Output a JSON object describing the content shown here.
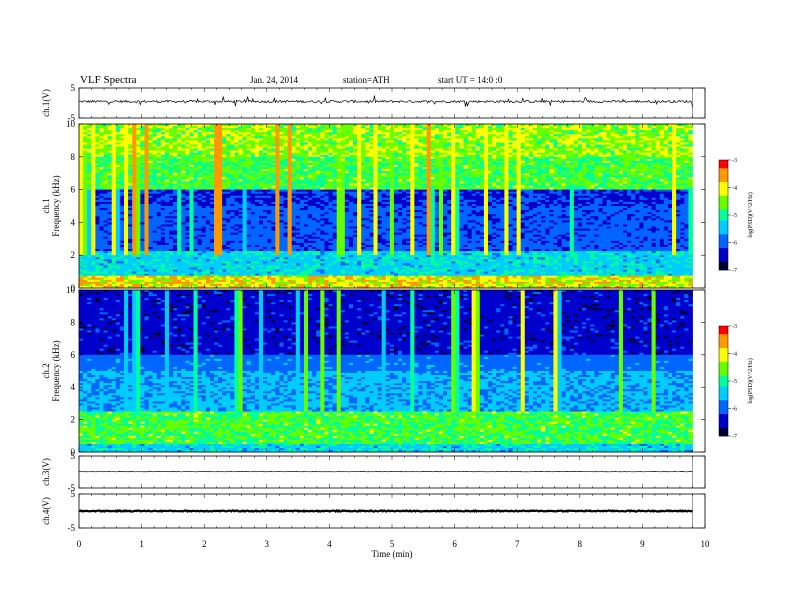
{
  "header": {
    "title": "VLF Spectra",
    "date": "Jan. 24, 2014",
    "station": "station=ATH",
    "start": "start UT = 14:0 :0"
  },
  "chart_data": [
    {
      "type": "line",
      "name": "ch1-waveform",
      "ylabel": "ch.1(V)",
      "ylim": [
        -5,
        5
      ],
      "yticks": [
        "5",
        "-5"
      ],
      "xlim": [
        0,
        10
      ],
      "data_xmax": 9.8,
      "baseline": 0.5,
      "noise": 0.4,
      "spikes": 0.9
    },
    {
      "type": "heatmap",
      "name": "ch1-spectrogram",
      "ylabel": "ch.1\nFrequency (kHz)",
      "ylim": [
        0,
        10
      ],
      "yticks": [
        "0",
        "2",
        "4",
        "6",
        "8",
        "10"
      ],
      "xlim": [
        0,
        10
      ],
      "data_xmax": 9.8,
      "colorbar": {
        "label": "log(PSD)(V^2/Hz)",
        "range": [
          -7,
          -3
        ],
        "ticks": [
          "-3",
          "-4",
          "-5",
          "-6",
          "-7"
        ]
      },
      "profile": "ch1"
    },
    {
      "type": "heatmap",
      "name": "ch2-spectrogram",
      "ylabel": "ch.2\nFrequency (kHz)",
      "ylim": [
        0,
        10
      ],
      "yticks": [
        "0",
        "2",
        "4",
        "6",
        "8",
        "10"
      ],
      "xlim": [
        0,
        10
      ],
      "data_xmax": 9.8,
      "colorbar": {
        "label": "log(PSD)(V^2/Hz)",
        "range": [
          -7,
          -3
        ],
        "ticks": [
          "-3",
          "-4",
          "-5",
          "-6",
          "-7"
        ]
      },
      "profile": "ch2"
    },
    {
      "type": "line",
      "name": "ch3-waveform",
      "ylabel": "ch.3(V)",
      "ylim": [
        -5,
        5
      ],
      "yticks": [
        "5",
        "-5"
      ],
      "xlim": [
        0,
        10
      ],
      "data_xmax": 9.8,
      "baseline": 0.1,
      "noise": 0.05,
      "spikes": 0.0
    },
    {
      "type": "line",
      "name": "ch4-waveform",
      "ylabel": "ch.4(V)",
      "ylim": [
        -5,
        5
      ],
      "yticks": [
        "5",
        "-5"
      ],
      "xlim": [
        0,
        10
      ],
      "data_xmax": 9.8,
      "baseline": 0.0,
      "noise": 0.15,
      "spikes": 0.0
    }
  ],
  "xaxis": {
    "label": "Time (min)",
    "ticks": [
      "0",
      "1",
      "2",
      "3",
      "4",
      "5",
      "6",
      "7",
      "8",
      "9",
      "10"
    ]
  },
  "colormap": [
    "#000033",
    "#0000cc",
    "#0066ff",
    "#00ccff",
    "#00ff99",
    "#66ff00",
    "#ffff00",
    "#ff9900",
    "#ff0000",
    "#ffffff"
  ]
}
